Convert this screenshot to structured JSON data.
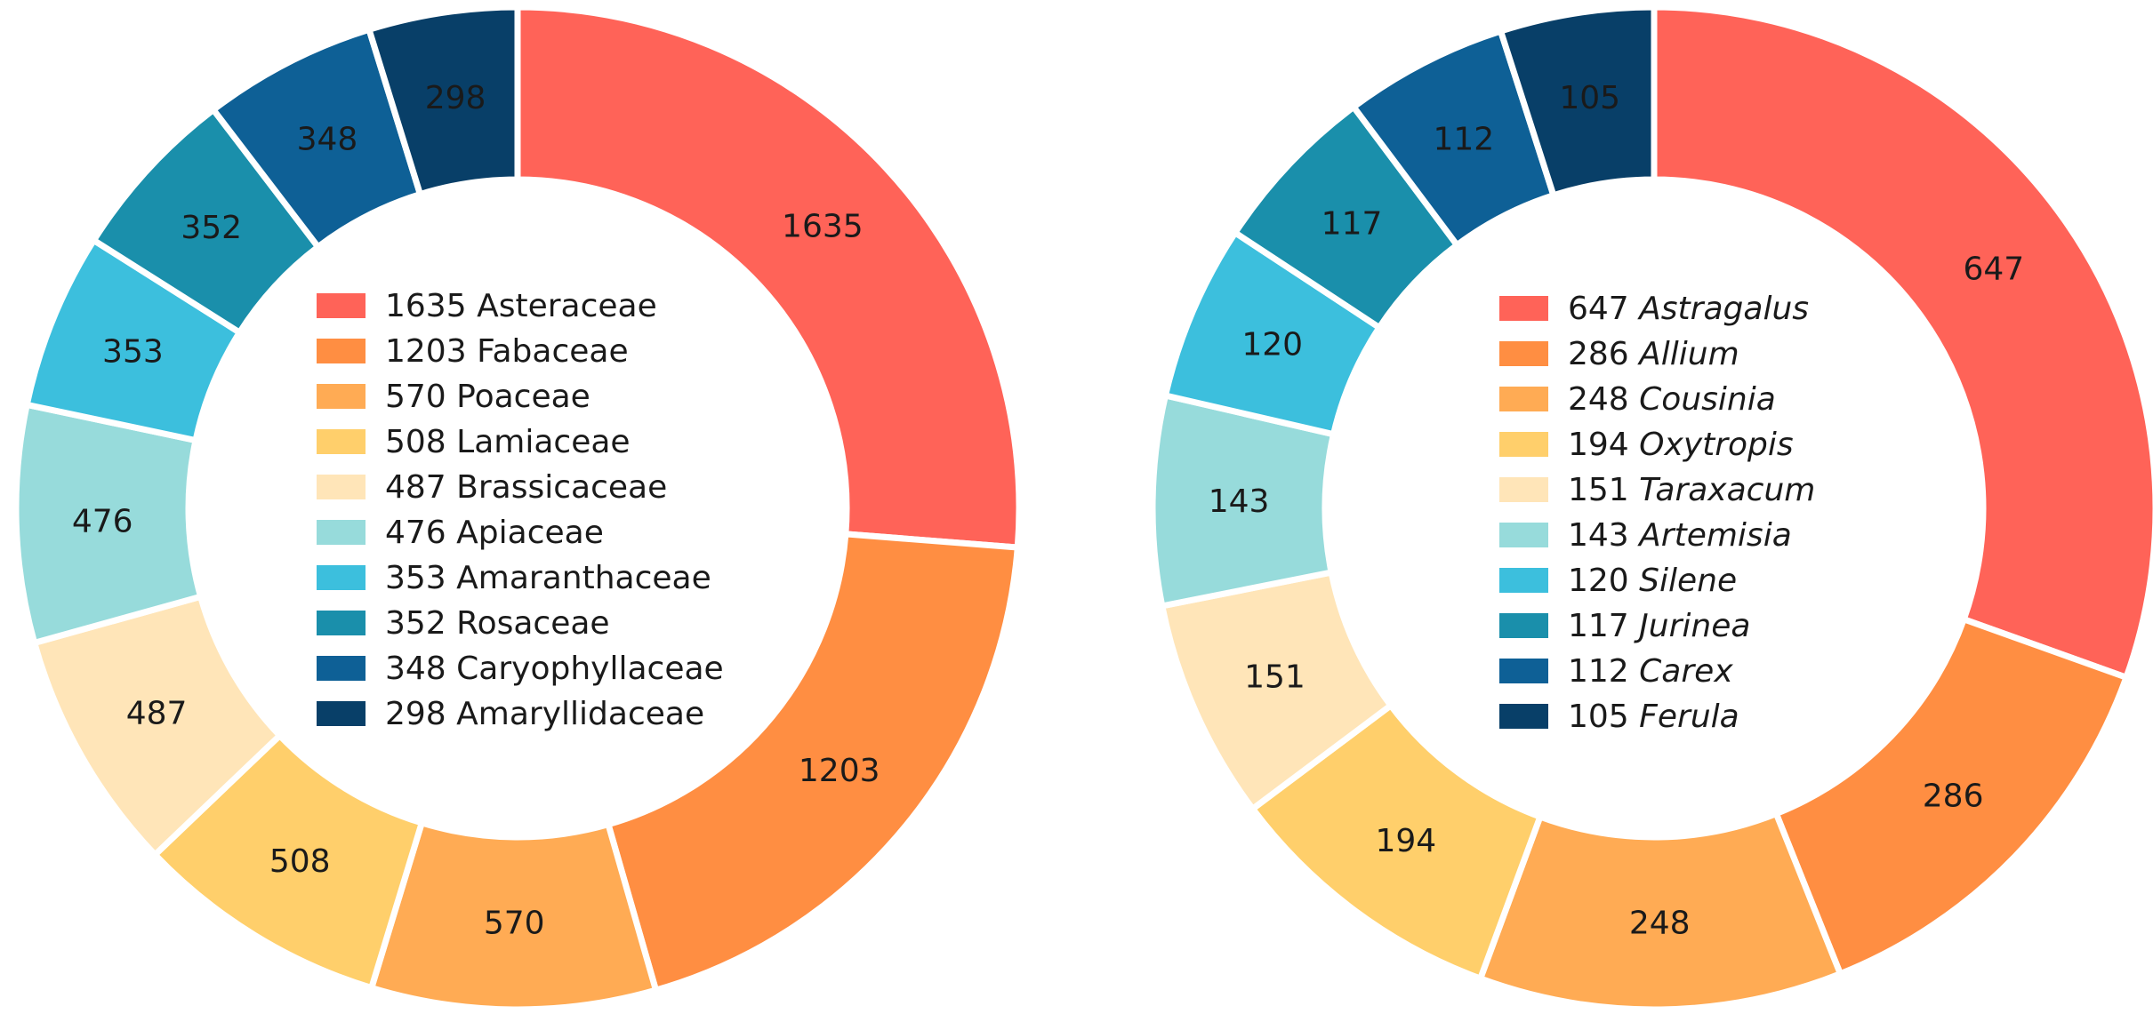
{
  "chart_data": [
    {
      "type": "pie",
      "variant": "donut",
      "title": "",
      "italic_names": false,
      "categories": [
        "Asteraceae",
        "Fabaceae",
        "Poaceae",
        "Lamiaceae",
        "Brassicaceae",
        "Apiaceae",
        "Amaranthaceae",
        "Rosaceae",
        "Caryophyllaceae",
        "Amaryllidaceae"
      ],
      "values": [
        1635,
        1203,
        570,
        508,
        487,
        476,
        353,
        352,
        348,
        298
      ],
      "colors": [
        "#ff6358",
        "#ff8e42",
        "#ffab54",
        "#ffcf6b",
        "#ffe5b8",
        "#97dbdb",
        "#3cbfdd",
        "#1a8fab",
        "#0e6096",
        "#083f68"
      ],
      "legend": [
        "1635",
        "1203",
        "570",
        "508",
        "487",
        "476",
        "353",
        "352",
        "348",
        "298"
      ],
      "legend_position": "center"
    },
    {
      "type": "pie",
      "variant": "donut",
      "title": "",
      "italic_names": true,
      "categories": [
        "Astragalus",
        "Allium",
        "Cousinia",
        "Oxytropis",
        "Taraxacum",
        "Artemisia",
        "Silene",
        "Jurinea",
        "Carex",
        "Ferula"
      ],
      "values": [
        647,
        286,
        248,
        194,
        151,
        143,
        120,
        117,
        112,
        105
      ],
      "colors": [
        "#ff6358",
        "#ff8e42",
        "#ffab54",
        "#ffcf6b",
        "#ffe5b8",
        "#97dbdb",
        "#3cbfdd",
        "#1a8fab",
        "#0e6096",
        "#083f68"
      ],
      "legend": [
        "647",
        "286",
        "248",
        "194",
        "151",
        "143",
        "120",
        "117",
        "112",
        "105"
      ],
      "legend_position": "center"
    }
  ]
}
